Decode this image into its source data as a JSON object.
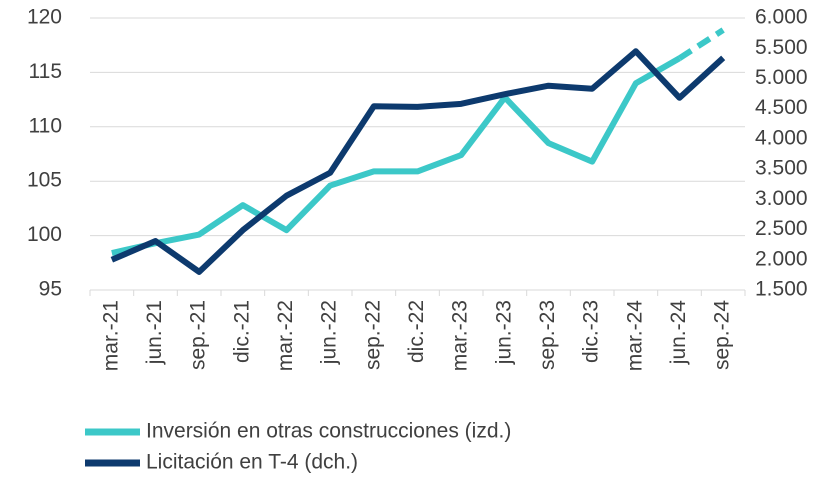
{
  "chart_data": {
    "type": "line",
    "categories": [
      "mar.-21",
      "jun.-21",
      "sep.-21",
      "dic.-21",
      "mar.-22",
      "jun.-22",
      "sep.-22",
      "dic.-22",
      "mar.-23",
      "jun.-23",
      "sep.-23",
      "dic.-23",
      "mar.-24",
      "jun.-24",
      "sep.-24"
    ],
    "series": [
      {
        "name": "Inversión en otras construcciones (izd.)",
        "color": "#3cc8c8",
        "dashed_from": "jun.-24",
        "values": [
          98.4,
          99.3,
          100.1,
          102.8,
          100.5,
          104.6,
          105.9,
          105.9,
          107.4,
          112.7,
          108.5,
          106.8,
          114.0,
          116.3,
          118.9
        ]
      },
      {
        "name": "Licitación en T-4 (dch.)",
        "color": "#0d3a6e",
        "axis": "y2",
        "values": [
          2000,
          2310,
          1800,
          2490,
          3060,
          3440,
          4540,
          4530,
          4580,
          4740,
          4880,
          4830,
          5450,
          4680,
          5340
        ]
      }
    ],
    "ylim": [
      95,
      120
    ],
    "yticks": [
      95,
      100,
      105,
      110,
      115,
      120
    ],
    "y2lim": [
      1500,
      6000
    ],
    "y2ticks": [
      {
        "value": 1500,
        "label": "1.500"
      },
      {
        "value": 2000,
        "label": "2.000"
      },
      {
        "value": 2500,
        "label": "2.500"
      },
      {
        "value": 3000,
        "label": "3.000"
      },
      {
        "value": 3500,
        "label": "3.500"
      },
      {
        "value": 4000,
        "label": "4.000"
      },
      {
        "value": 4500,
        "label": "4.500"
      },
      {
        "value": 5000,
        "label": "5.000"
      },
      {
        "value": 5500,
        "label": "5.500"
      },
      {
        "value": 6000,
        "label": "6.000"
      }
    ],
    "grid": true
  }
}
